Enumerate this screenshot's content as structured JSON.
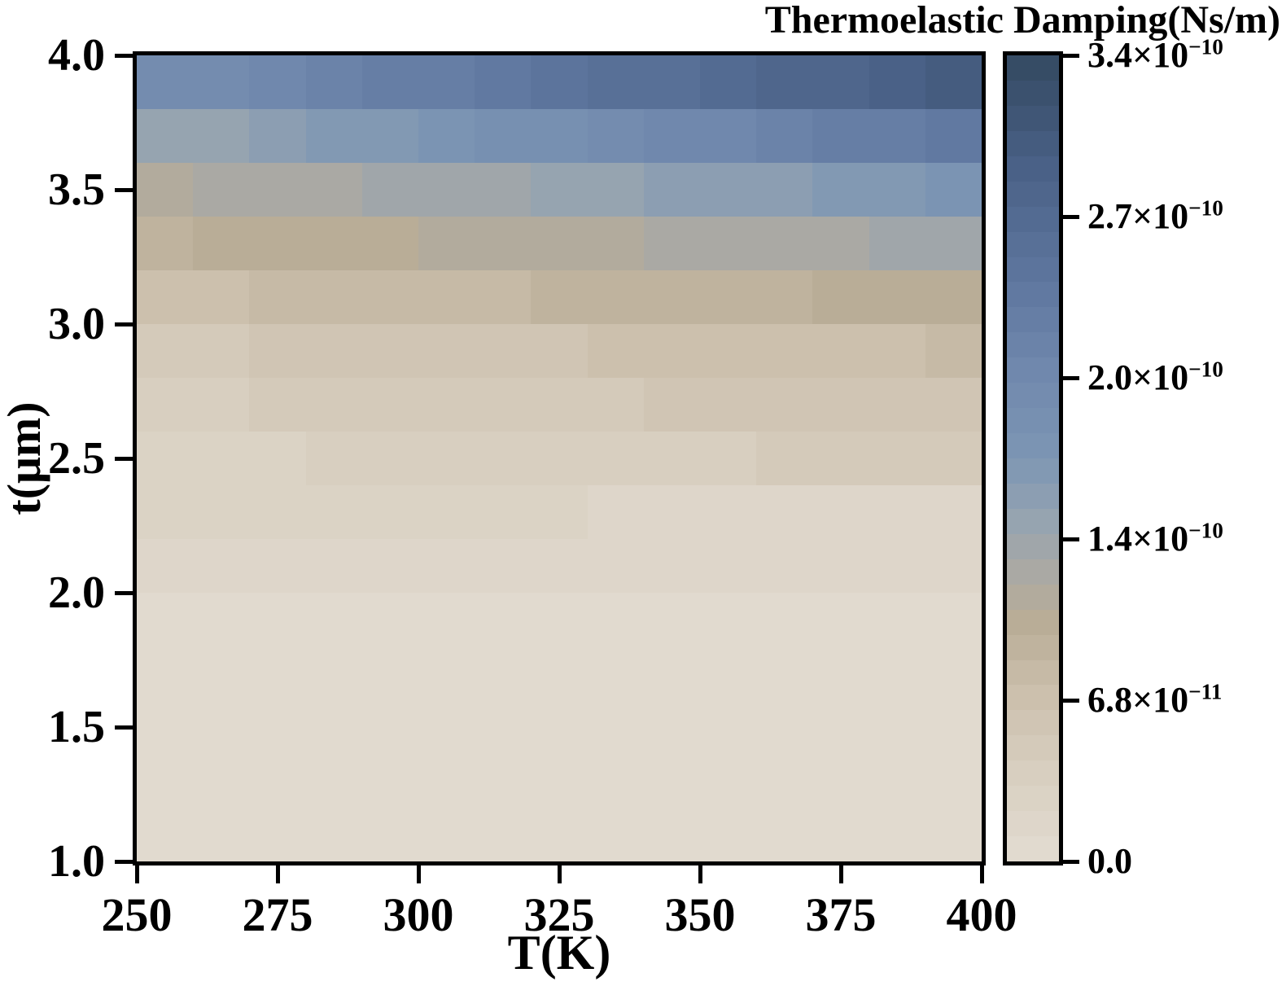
{
  "title": "Thermoelastic Damping(Ns/m)",
  "style": {
    "background": "#ffffff",
    "axis_color": "#000000",
    "text_color": "#000000"
  },
  "axes": {
    "x": {
      "label": "T(K)",
      "min": 250,
      "max": 400,
      "ticks": [
        250,
        275,
        300,
        325,
        350,
        375,
        400
      ],
      "tick_labels": [
        "250",
        "275",
        "300",
        "325",
        "350",
        "375",
        "400"
      ]
    },
    "y": {
      "label": "t(μm)",
      "min": 1.0,
      "max": 4.0,
      "ticks": [
        4.0,
        3.5,
        3.0,
        2.5,
        2.0,
        1.5,
        1.0
      ],
      "tick_labels": [
        "4.0",
        "3.5",
        "3.0",
        "2.5",
        "2.0",
        "1.5",
        "1.0"
      ]
    }
  },
  "colorbar": {
    "title": "Thermoelastic Damping(Ns/m)",
    "unit": "Ns/m",
    "vmin": 0,
    "vmax_in_1e10": 3.4,
    "unit_scale": 1e-10,
    "levels": 32,
    "ticks": [
      {
        "value_in_1e10": 3.4,
        "label": "3.4×10^−10"
      },
      {
        "value_in_1e10": 2.72,
        "label": "2.7×10^−10"
      },
      {
        "value_in_1e10": 2.04,
        "label": "2.0×10^−10"
      },
      {
        "value_in_1e10": 1.36,
        "label": "1.4×10^−10"
      },
      {
        "value_in_1e10": 0.68,
        "label": "6.8×10^−11"
      },
      {
        "value_in_1e10": 0.0,
        "label": "0.0"
      }
    ],
    "colormap_stops": [
      [
        0.0,
        "#e3dcd1"
      ],
      [
        0.1,
        "#d9d0c2"
      ],
      [
        0.2,
        "#cdc1ae"
      ],
      [
        0.297,
        "#b9ad97"
      ],
      [
        0.36,
        "#aaa9a4"
      ],
      [
        0.42,
        "#97a4b0"
      ],
      [
        0.5,
        "#7d96b4"
      ],
      [
        0.61,
        "#7088ad"
      ],
      [
        0.73,
        "#5d759d"
      ],
      [
        0.86,
        "#4a6187"
      ],
      [
        1.0,
        "#344961"
      ]
    ]
  },
  "chart_data": {
    "type": "heatmap",
    "title": "Thermoelastic Damping(Ns/m)",
    "xlabel": "T(K)",
    "ylabel": "t(μm)",
    "unit": "Ns/m",
    "unit_scale": 1e-10,
    "grid": "off",
    "legend": "colorbar-right",
    "x_edges_K": [
      250,
      260,
      270,
      280,
      290,
      300,
      310,
      320,
      330,
      340,
      350,
      360,
      370,
      380,
      390,
      400
    ],
    "y_edges_um": [
      1.0,
      1.2,
      1.4,
      1.6,
      1.8,
      2.0,
      2.2,
      2.4,
      2.6,
      2.8,
      3.0,
      3.2,
      3.4,
      3.6,
      3.8,
      4.0
    ],
    "row_centers_um_top_to_bottom": [
      3.9,
      3.7,
      3.5,
      3.3,
      3.1,
      2.9,
      2.7,
      2.5,
      2.3,
      2.1,
      1.9,
      1.7,
      1.5,
      1.3,
      1.1
    ],
    "values_in_1e10_rows_top_to_bottom": [
      [
        1.92,
        2.0,
        2.08,
        2.16,
        2.24,
        2.31,
        2.39,
        2.47,
        2.55,
        2.63,
        2.71,
        2.78,
        2.86,
        2.94,
        3.02
      ],
      [
        1.4,
        1.47,
        1.54,
        1.61,
        1.68,
        1.75,
        1.82,
        1.89,
        1.96,
        2.03,
        2.1,
        2.17,
        2.24,
        2.31,
        2.38
      ],
      [
        1.14,
        1.18,
        1.22,
        1.26,
        1.3,
        1.34,
        1.38,
        1.42,
        1.46,
        1.5,
        1.54,
        1.58,
        1.62,
        1.66,
        1.7
      ],
      [
        0.95,
        0.98,
        1.0,
        1.03,
        1.05,
        1.08,
        1.1,
        1.13,
        1.15,
        1.18,
        1.2,
        1.23,
        1.25,
        1.28,
        1.3
      ],
      [
        0.72,
        0.74,
        0.76,
        0.78,
        0.8,
        0.82,
        0.84,
        0.86,
        0.88,
        0.9,
        0.92,
        0.94,
        0.96,
        0.98,
        1.0
      ],
      [
        0.5,
        0.52,
        0.54,
        0.56,
        0.57,
        0.59,
        0.61,
        0.63,
        0.65,
        0.67,
        0.69,
        0.7,
        0.72,
        0.74,
        0.76
      ],
      [
        0.4,
        0.42,
        0.43,
        0.45,
        0.46,
        0.48,
        0.49,
        0.51,
        0.53,
        0.54,
        0.56,
        0.57,
        0.59,
        0.6,
        0.62
      ],
      [
        0.28,
        0.29,
        0.31,
        0.32,
        0.34,
        0.35,
        0.37,
        0.38,
        0.39,
        0.41,
        0.42,
        0.44,
        0.45,
        0.47,
        0.48
      ],
      [
        0.222,
        0.221,
        0.22,
        0.219,
        0.218,
        0.217,
        0.216,
        0.215,
        0.205,
        0.203,
        0.201,
        0.199,
        0.196,
        0.193,
        0.19
      ],
      [
        0.135,
        0.134,
        0.132,
        0.131,
        0.129,
        0.128,
        0.126,
        0.125,
        0.123,
        0.122,
        0.12,
        0.119,
        0.117,
        0.116,
        0.115
      ],
      [
        0.106,
        0.106,
        0.105,
        0.105,
        0.104,
        0.104,
        0.103,
        0.103,
        0.102,
        0.102,
        0.101,
        0.101,
        0.1,
        0.1,
        0.1
      ],
      [
        0.1,
        0.1,
        0.099,
        0.099,
        0.099,
        0.098,
        0.098,
        0.098,
        0.097,
        0.097,
        0.097,
        0.096,
        0.096,
        0.096,
        0.096
      ],
      [
        0.095,
        0.095,
        0.095,
        0.094,
        0.094,
        0.094,
        0.094,
        0.093,
        0.093,
        0.093,
        0.093,
        0.093,
        0.093,
        0.093,
        0.093
      ],
      [
        0.092,
        0.092,
        0.092,
        0.091,
        0.091,
        0.091,
        0.091,
        0.091,
        0.091,
        0.091,
        0.091,
        0.09,
        0.09,
        0.09,
        0.09
      ],
      [
        0.09,
        0.09,
        0.09,
        0.09,
        0.09,
        0.09,
        0.09,
        0.09,
        0.09,
        0.09,
        0.09,
        0.09,
        0.09,
        0.09,
        0.09
      ]
    ]
  }
}
